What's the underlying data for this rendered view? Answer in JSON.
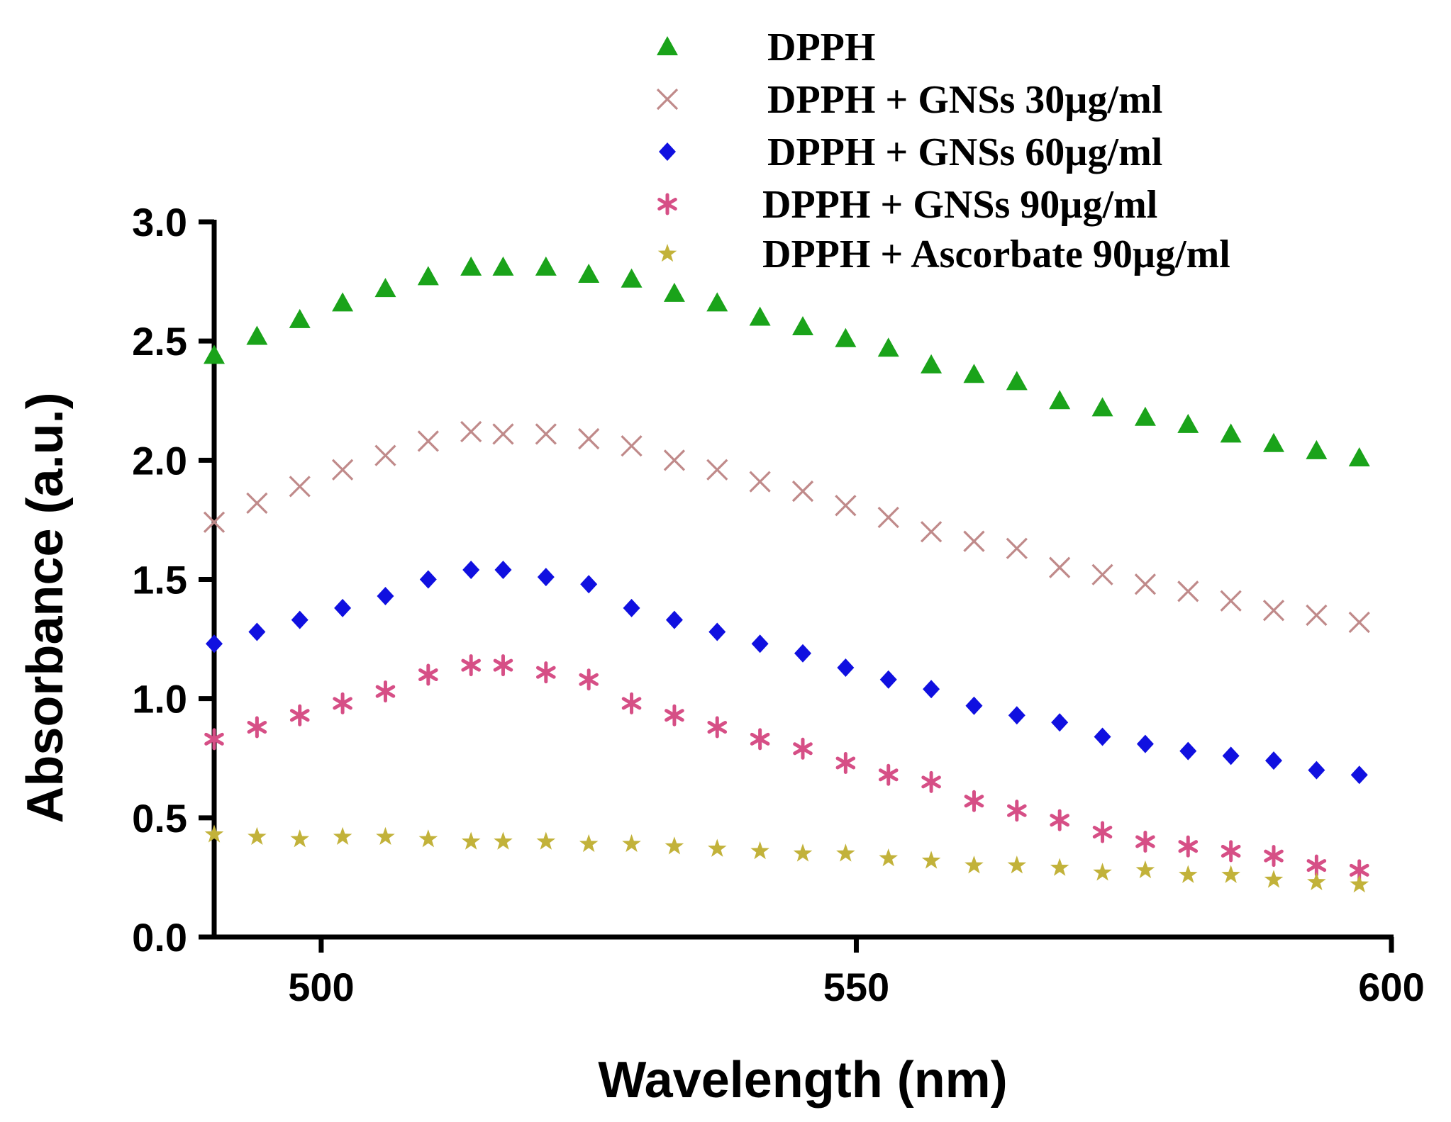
{
  "chart_data": {
    "type": "scatter",
    "title": "",
    "xlabel": "Wavelength (nm)",
    "ylabel": "Absorbance (a.u.)",
    "xlim": [
      490,
      600
    ],
    "ylim": [
      0.0,
      3.0
    ],
    "xticks": [
      500,
      550,
      600
    ],
    "xtick_labels": [
      "500",
      "550",
      "600"
    ],
    "yticks": [
      0.0,
      0.5,
      1.0,
      1.5,
      2.0,
      2.5,
      3.0
    ],
    "ytick_labels": [
      "0.0",
      "0.5",
      "1.0",
      "1.5",
      "2.0",
      "2.5",
      "3.0"
    ],
    "grid": false,
    "legend_position": "top",
    "x": [
      490,
      494,
      498,
      502,
      506,
      510,
      514,
      517,
      521,
      525,
      529,
      533,
      537,
      541,
      545,
      549,
      553,
      557,
      561,
      565,
      569,
      573,
      577,
      581,
      585,
      589,
      593,
      597
    ],
    "series": [
      {
        "name": "DPPH",
        "marker": "triangle",
        "color": "#1aa31a",
        "values": [
          2.44,
          2.52,
          2.59,
          2.66,
          2.72,
          2.77,
          2.81,
          2.81,
          2.81,
          2.78,
          2.76,
          2.7,
          2.66,
          2.6,
          2.56,
          2.51,
          2.47,
          2.4,
          2.36,
          2.33,
          2.25,
          2.22,
          2.18,
          2.15,
          2.11,
          2.07,
          2.04,
          2.01
        ]
      },
      {
        "name": "DPPH + GNSs 30µg/ml",
        "marker": "x",
        "color": "#c08a8a",
        "values": [
          1.74,
          1.82,
          1.89,
          1.96,
          2.02,
          2.08,
          2.12,
          2.11,
          2.11,
          2.09,
          2.06,
          2.0,
          1.96,
          1.91,
          1.87,
          1.81,
          1.76,
          1.7,
          1.66,
          1.63,
          1.55,
          1.52,
          1.48,
          1.45,
          1.41,
          1.37,
          1.35,
          1.32
        ]
      },
      {
        "name": "DPPH + GNSs 60µg/ml",
        "marker": "diamond",
        "color": "#1010e0",
        "values": [
          1.23,
          1.28,
          1.33,
          1.38,
          1.43,
          1.5,
          1.54,
          1.54,
          1.51,
          1.48,
          1.38,
          1.33,
          1.28,
          1.23,
          1.19,
          1.13,
          1.08,
          1.04,
          0.97,
          0.93,
          0.9,
          0.84,
          0.81,
          0.78,
          0.76,
          0.74,
          0.7,
          0.68
        ]
      },
      {
        "name": "DPPH + GNSs 90µg/ml",
        "marker": "asterisk",
        "color": "#d64f86",
        "values": [
          0.83,
          0.88,
          0.93,
          0.98,
          1.03,
          1.1,
          1.14,
          1.14,
          1.11,
          1.08,
          0.98,
          0.93,
          0.88,
          0.83,
          0.79,
          0.73,
          0.68,
          0.65,
          0.57,
          0.53,
          0.49,
          0.44,
          0.4,
          0.38,
          0.36,
          0.34,
          0.3,
          0.28
        ]
      },
      {
        "name": "DPPH + Ascorbate 90µg/ml",
        "marker": "star",
        "color": "#c2b23a",
        "values": [
          0.43,
          0.42,
          0.41,
          0.42,
          0.42,
          0.41,
          0.4,
          0.4,
          0.4,
          0.39,
          0.39,
          0.38,
          0.37,
          0.36,
          0.35,
          0.35,
          0.33,
          0.32,
          0.3,
          0.3,
          0.29,
          0.27,
          0.28,
          0.26,
          0.26,
          0.24,
          0.23,
          0.22
        ]
      }
    ]
  }
}
